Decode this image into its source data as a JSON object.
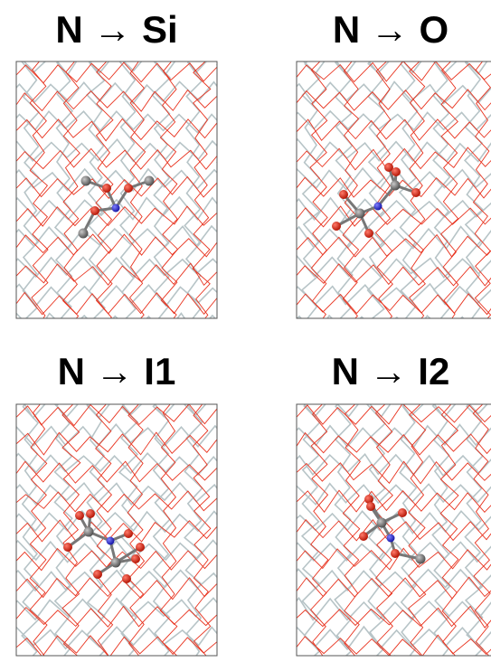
{
  "panels": [
    {
      "title": "N → Si"
    },
    {
      "title": "N → O"
    },
    {
      "title": "N → I1"
    },
    {
      "title": "N → I2"
    }
  ]
}
